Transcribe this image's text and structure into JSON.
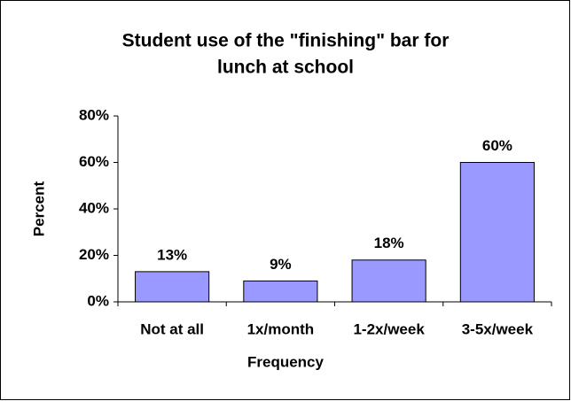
{
  "chart_data": {
    "type": "bar",
    "title": [
      "Student use of the \"finishing\" bar for",
      "lunch at school"
    ],
    "x_label": "Frequency",
    "y_label": "Percent",
    "categories": [
      "Not at all",
      "1x/month",
      "1-2x/week",
      "3-5x/week"
    ],
    "values": [
      13,
      9,
      18,
      60
    ],
    "value_labels": [
      "13%",
      "9%",
      "18%",
      "60%"
    ],
    "color": "#9999ff",
    "ylim": [
      0,
      80
    ],
    "yticks": [
      {
        "value": 0,
        "label": "0%"
      },
      {
        "value": 20,
        "label": "20%"
      },
      {
        "value": 40,
        "label": "40%"
      },
      {
        "value": 60,
        "label": "60%"
      },
      {
        "value": 80,
        "label": "80%"
      }
    ],
    "grid": false
  }
}
